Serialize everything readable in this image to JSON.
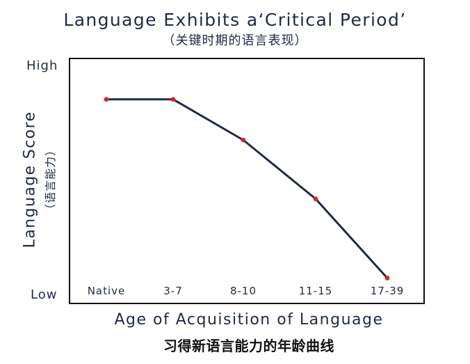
{
  "page": {
    "title": "Language Exhibits a‘Critical Period’",
    "subtitle": "（关键时期的语言表现）",
    "xlabel_en": "Age of Acquisition of Language",
    "xlabel_zh": "习得新语言能力的年龄曲线",
    "ylabel_en": "Language Score",
    "ylabel_zh": "（语言能力）",
    "ytick_high": "High",
    "ytick_low": "Low"
  },
  "chart_data": {
    "type": "line",
    "title": "Language Exhibits a‘Critical Period’",
    "subtitle": "（关键时期的语言表现）",
    "xlabel": "Age of Acquisition of Language",
    "xlabel_secondary": "习得新语言能力的年龄曲线",
    "ylabel": "Language Score",
    "ylabel_secondary": "（语言能力）",
    "categories": [
      "Native",
      "3-7",
      "8-10",
      "11-15",
      "17-39"
    ],
    "values": [
      0.85,
      0.85,
      0.67,
      0.41,
      0.06
    ],
    "ylim": [
      0,
      1
    ],
    "yticks": [
      "Low",
      "High"
    ],
    "grid": false,
    "legend": "none",
    "colors": {
      "line": "#1f2a44",
      "marker": "#e0202a",
      "axes": "#111111",
      "text": "#1f2a44"
    }
  }
}
